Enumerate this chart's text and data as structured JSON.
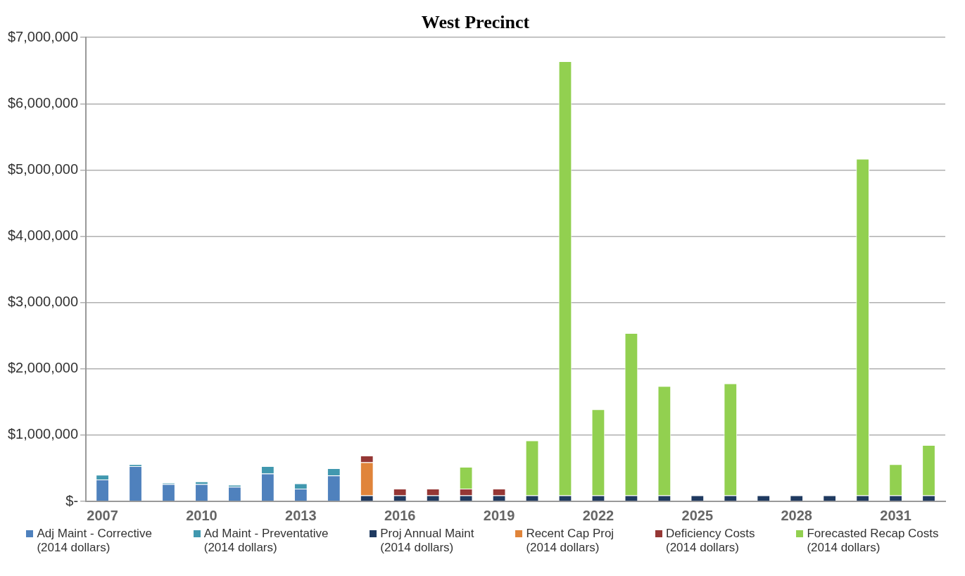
{
  "chart_data": {
    "type": "bar",
    "title": "West Precinct",
    "stacked": true,
    "grid": "y",
    "legend": "bottom",
    "categories": [
      "2007",
      null,
      null,
      "2010",
      null,
      null,
      "2013",
      null,
      null,
      "2016",
      null,
      null,
      "2019",
      null,
      null,
      "2022",
      null,
      null,
      "2025",
      null,
      null,
      "2028",
      null,
      null,
      "2031",
      null
    ],
    "ylim": [
      0,
      7000000
    ],
    "yticks": [
      {
        "value": 0,
        "label": "$-"
      },
      {
        "value": 1000000,
        "label": "$1,000,000"
      },
      {
        "value": 2000000,
        "label": "$2,000,000"
      },
      {
        "value": 3000000,
        "label": "$3,000,000"
      },
      {
        "value": 4000000,
        "label": "$4,000,000"
      },
      {
        "value": 5000000,
        "label": "$5,000,000"
      },
      {
        "value": 6000000,
        "label": "$6,000,000"
      },
      {
        "value": 7000000,
        "label": "$7,000,000"
      }
    ],
    "series": [
      {
        "name": "Adj Maint - Corrective\n(2014 dollars)",
        "color": "#4f81bd",
        "values": [
          330000,
          530000,
          260000,
          260000,
          220000,
          420000,
          190000,
          390000,
          null,
          null,
          null,
          null,
          null,
          null,
          null,
          null,
          null,
          null,
          null,
          null,
          null,
          null,
          null,
          null,
          null,
          null
        ]
      },
      {
        "name": "Ad Maint - Preventative\n(2014 dollars)",
        "color": "#4198af",
        "values": [
          70000,
          30000,
          20000,
          40000,
          30000,
          110000,
          80000,
          110000,
          null,
          null,
          null,
          null,
          null,
          null,
          null,
          null,
          null,
          null,
          null,
          null,
          null,
          null,
          null,
          null,
          null,
          null
        ]
      },
      {
        "name": "Proj Annual Maint\n(2014 dollars)",
        "color": "#1f3a60",
        "values": [
          null,
          null,
          null,
          null,
          null,
          null,
          null,
          null,
          90000,
          90000,
          90000,
          90000,
          90000,
          90000,
          90000,
          90000,
          90000,
          90000,
          90000,
          90000,
          90000,
          90000,
          90000,
          90000,
          90000,
          90000
        ]
      },
      {
        "name": "Recent Cap Proj\n(2014 dollars)",
        "color": "#e0843a",
        "values": [
          null,
          null,
          null,
          null,
          null,
          null,
          null,
          null,
          500000,
          null,
          null,
          null,
          null,
          null,
          null,
          null,
          null,
          null,
          null,
          null,
          null,
          null,
          null,
          null,
          null,
          null
        ]
      },
      {
        "name": "Deficiency Costs\n(2014 dollars)",
        "color": "#953735",
        "values": [
          null,
          null,
          null,
          null,
          null,
          null,
          null,
          null,
          100000,
          100000,
          100000,
          100000,
          100000,
          null,
          null,
          null,
          null,
          null,
          null,
          null,
          null,
          null,
          null,
          null,
          null,
          null
        ]
      },
      {
        "name": "Forecasted Recap Costs\n(2014 dollars)",
        "color": "#92d050",
        "values": [
          null,
          null,
          null,
          null,
          null,
          null,
          null,
          null,
          null,
          null,
          null,
          330000,
          null,
          830000,
          6550000,
          1300000,
          2450000,
          1650000,
          null,
          1690000,
          null,
          null,
          null,
          5080000,
          470000,
          760000
        ]
      }
    ]
  }
}
